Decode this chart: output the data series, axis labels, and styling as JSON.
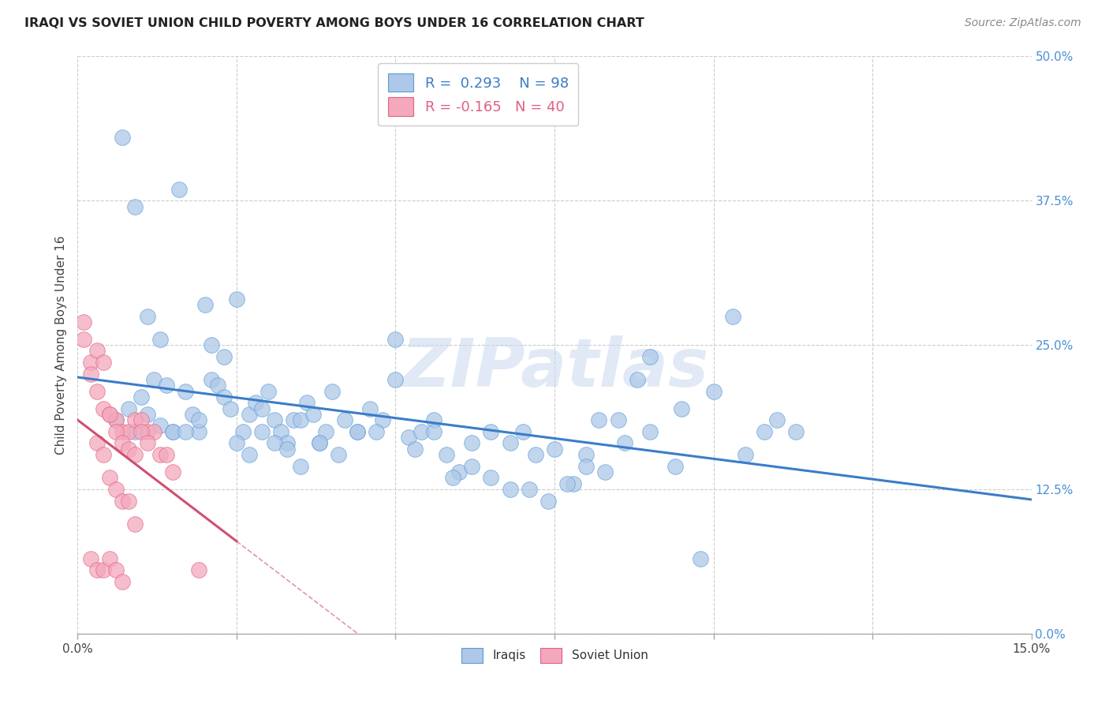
{
  "title": "IRAQI VS SOVIET UNION CHILD POVERTY AMONG BOYS UNDER 16 CORRELATION CHART",
  "source": "Source: ZipAtlas.com",
  "ylabel": "Child Poverty Among Boys Under 16",
  "ytick_labels": [
    "0.0%",
    "12.5%",
    "25.0%",
    "37.5%",
    "50.0%"
  ],
  "ytick_values": [
    0.0,
    0.125,
    0.25,
    0.375,
    0.5
  ],
  "xmin": 0.0,
  "xmax": 0.15,
  "ymin": 0.0,
  "ymax": 0.5,
  "iraqi_color": "#adc8e8",
  "soviet_color": "#f4a8bc",
  "iraqi_edge_color": "#5b9bd5",
  "soviet_edge_color": "#e06080",
  "iraqi_line_color": "#3a7dc9",
  "soviet_line_color": "#d05070",
  "R_iraqi": 0.293,
  "N_iraqi": 98,
  "R_soviet": -0.165,
  "N_soviet": 40,
  "watermark": "ZIPatlas",
  "watermark_color": "#c8d8ee",
  "grid_color": "#cccccc",
  "title_color": "#222222",
  "source_color": "#888888",
  "ylabel_color": "#444444",
  "tick_color": "#444444",
  "right_tick_color": "#4a90d9",
  "iraqi_x": [
    0.006,
    0.008,
    0.009,
    0.01,
    0.011,
    0.012,
    0.013,
    0.014,
    0.015,
    0.016,
    0.017,
    0.018,
    0.019,
    0.02,
    0.021,
    0.022,
    0.023,
    0.024,
    0.025,
    0.026,
    0.027,
    0.028,
    0.029,
    0.03,
    0.031,
    0.032,
    0.033,
    0.034,
    0.035,
    0.036,
    0.037,
    0.038,
    0.039,
    0.04,
    0.042,
    0.044,
    0.046,
    0.048,
    0.05,
    0.052,
    0.054,
    0.056,
    0.058,
    0.06,
    0.062,
    0.065,
    0.068,
    0.07,
    0.072,
    0.075,
    0.078,
    0.08,
    0.082,
    0.085,
    0.088,
    0.09,
    0.095,
    0.1,
    0.105,
    0.11,
    0.007,
    0.009,
    0.011,
    0.013,
    0.015,
    0.017,
    0.019,
    0.021,
    0.023,
    0.025,
    0.027,
    0.029,
    0.031,
    0.033,
    0.035,
    0.038,
    0.041,
    0.044,
    0.047,
    0.05,
    0.053,
    0.056,
    0.059,
    0.062,
    0.065,
    0.068,
    0.071,
    0.074,
    0.077,
    0.08,
    0.083,
    0.086,
    0.09,
    0.094,
    0.098,
    0.103,
    0.108,
    0.113
  ],
  "iraqi_y": [
    0.185,
    0.195,
    0.175,
    0.205,
    0.19,
    0.22,
    0.18,
    0.215,
    0.175,
    0.385,
    0.21,
    0.19,
    0.175,
    0.285,
    0.22,
    0.215,
    0.205,
    0.195,
    0.29,
    0.175,
    0.19,
    0.2,
    0.195,
    0.21,
    0.185,
    0.175,
    0.165,
    0.185,
    0.185,
    0.2,
    0.19,
    0.165,
    0.175,
    0.21,
    0.185,
    0.175,
    0.195,
    0.185,
    0.22,
    0.17,
    0.175,
    0.185,
    0.155,
    0.14,
    0.165,
    0.175,
    0.165,
    0.175,
    0.155,
    0.16,
    0.13,
    0.155,
    0.185,
    0.185,
    0.22,
    0.175,
    0.195,
    0.21,
    0.155,
    0.185,
    0.43,
    0.37,
    0.275,
    0.255,
    0.175,
    0.175,
    0.185,
    0.25,
    0.24,
    0.165,
    0.155,
    0.175,
    0.165,
    0.16,
    0.145,
    0.165,
    0.155,
    0.175,
    0.175,
    0.255,
    0.16,
    0.175,
    0.135,
    0.145,
    0.135,
    0.125,
    0.125,
    0.115,
    0.13,
    0.145,
    0.14,
    0.165,
    0.24,
    0.145,
    0.065,
    0.275,
    0.175,
    0.175
  ],
  "soviet_x": [
    0.001,
    0.002,
    0.003,
    0.004,
    0.005,
    0.006,
    0.007,
    0.008,
    0.009,
    0.01,
    0.011,
    0.012,
    0.013,
    0.014,
    0.015,
    0.003,
    0.004,
    0.005,
    0.006,
    0.007,
    0.008,
    0.009,
    0.01,
    0.011,
    0.001,
    0.002,
    0.003,
    0.004,
    0.005,
    0.006,
    0.007,
    0.008,
    0.009,
    0.002,
    0.003,
    0.004,
    0.005,
    0.006,
    0.007,
    0.019
  ],
  "soviet_y": [
    0.255,
    0.235,
    0.21,
    0.195,
    0.19,
    0.185,
    0.175,
    0.175,
    0.185,
    0.185,
    0.175,
    0.175,
    0.155,
    0.155,
    0.14,
    0.245,
    0.235,
    0.19,
    0.175,
    0.165,
    0.16,
    0.155,
    0.175,
    0.165,
    0.27,
    0.225,
    0.165,
    0.155,
    0.135,
    0.125,
    0.115,
    0.115,
    0.095,
    0.065,
    0.055,
    0.055,
    0.065,
    0.055,
    0.045,
    0.055
  ]
}
